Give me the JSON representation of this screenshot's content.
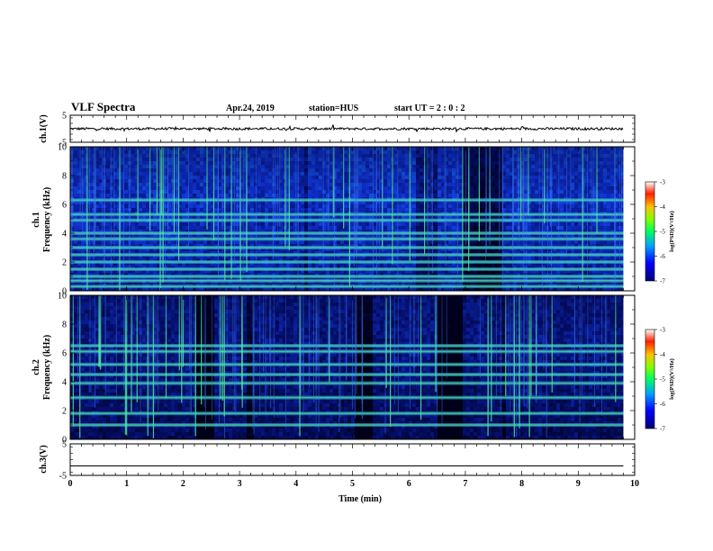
{
  "header": {
    "title": "VLF Spectra",
    "date": "Apr.24, 2019",
    "station": "station=HUS",
    "start": "start UT =  2 : 0 : 2"
  },
  "colors": {
    "background": "#ffffff",
    "axes": "#000000",
    "spectrogram_low": "#000020",
    "spectrogram_mid": "#1030c8",
    "spectrogram_high": "#40d0a0",
    "line": "#000000"
  },
  "chart_data": [
    {
      "type": "line",
      "id": "ch1-waveform",
      "ylabel": "ch.1(V)",
      "ylim": [
        -5,
        5
      ],
      "yticks": [
        "5",
        "-5"
      ],
      "xlim": [
        0,
        10
      ],
      "trace": "noisy waveform near 0 V across 0-9.8 min",
      "x": [
        0,
        9.8
      ],
      "y": [
        0,
        0
      ]
    },
    {
      "type": "heatmap",
      "id": "ch1-spectrogram",
      "ylabel": "ch.1\nFrequency (kHz)",
      "ylim": [
        0,
        10
      ],
      "yticks": [
        "0",
        "2",
        "4",
        "6",
        "8",
        "10"
      ],
      "xlim": [
        0,
        10
      ],
      "x_extent": [
        0,
        9.8
      ],
      "bands_khz": [
        0.3,
        0.7,
        1.0,
        1.5,
        2.0,
        2.5,
        3.0,
        3.6,
        4.0,
        4.9,
        5.3,
        6.3
      ],
      "colorbar": {
        "label": "log(PSD)(V²/Hz)",
        "range": [
          -7,
          -3
        ],
        "ticks": [
          "-3",
          "-4",
          "-5",
          "-6",
          "-7"
        ]
      }
    },
    {
      "type": "heatmap",
      "id": "ch2-spectrogram",
      "ylabel": "ch.2\nFrequency (kHz)",
      "ylim": [
        0,
        10
      ],
      "yticks": [
        "0",
        "2",
        "4",
        "6",
        "8",
        "10"
      ],
      "xlim": [
        0,
        10
      ],
      "x_extent": [
        0,
        9.8
      ],
      "bands_khz": [
        1.0,
        1.8,
        2.9,
        3.9,
        4.5,
        5.2,
        6.1,
        6.5
      ],
      "colorbar": {
        "label": "log(PSD)(V²/Hz)",
        "range": [
          -7,
          -3
        ],
        "ticks": [
          "-3",
          "-4",
          "-5",
          "-6",
          "-7"
        ]
      }
    },
    {
      "type": "line",
      "id": "ch3-waveform",
      "ylabel": "ch.3(V)",
      "ylim": [
        -5,
        5
      ],
      "yticks": [
        "5",
        "-5"
      ],
      "xlim": [
        0,
        10
      ],
      "x": [
        0,
        9.8
      ],
      "y": [
        -2,
        -2
      ],
      "xlabel": "Time (min)",
      "xticks": [
        "0",
        "1",
        "2",
        "3",
        "4",
        "5",
        "6",
        "7",
        "8",
        "9",
        "10"
      ]
    }
  ]
}
